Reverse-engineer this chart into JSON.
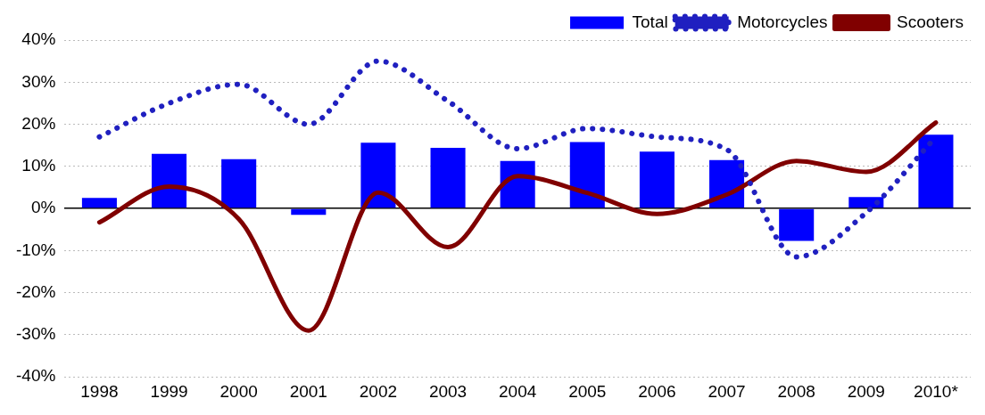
{
  "chart_data": {
    "type": "bar",
    "categories": [
      "1998",
      "1999",
      "2000",
      "2001",
      "2002",
      "2003",
      "2004",
      "2005",
      "2006",
      "2007",
      "2008",
      "2009",
      "2010*"
    ],
    "series": [
      {
        "name": "Total",
        "color": "#0000ff",
        "values": [
          2.5,
          13,
          11.7,
          -1.5,
          15.6,
          14.4,
          11.3,
          15.8,
          13.5,
          11.5,
          -7.7,
          2.7,
          17.5
        ]
      },
      {
        "name": "Motorcycles",
        "type": "line",
        "line_style": "dotted",
        "color": "#2020c0",
        "values": [
          17,
          25,
          29.5,
          20,
          35,
          25.5,
          14.2,
          19,
          17,
          14,
          -11.5,
          -1,
          17
        ]
      },
      {
        "name": "Scooters",
        "type": "line",
        "line_style": "solid",
        "color": "#800000",
        "values": [
          -3.3,
          5.2,
          -2.5,
          -29,
          3.8,
          -9.2,
          7.7,
          3.7,
          -1.3,
          3.3,
          11.3,
          8.7,
          20.4
        ]
      }
    ],
    "ylim": [
      -40,
      40
    ],
    "yticks": [
      {
        "value": -40,
        "label": "-40%"
      },
      {
        "value": -30,
        "label": "-30%"
      },
      {
        "value": -20,
        "label": "-20%"
      },
      {
        "value": -10,
        "label": "-10%"
      },
      {
        "value": 0,
        "label": "0%"
      },
      {
        "value": 10,
        "label": "10%"
      },
      {
        "value": 20,
        "label": "20%"
      },
      {
        "value": 30,
        "label": "30%"
      },
      {
        "value": 40,
        "label": "40%"
      }
    ],
    "grid": "y",
    "legend": "top right",
    "marker": "none"
  }
}
